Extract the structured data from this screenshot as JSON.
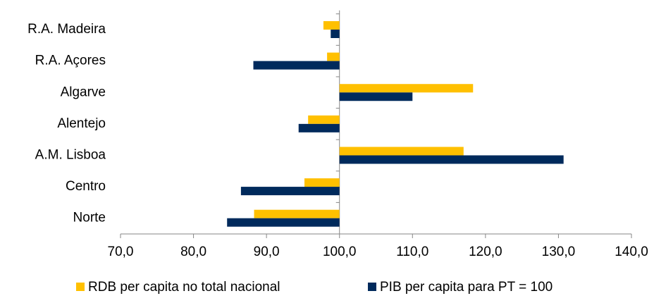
{
  "chart_data": {
    "type": "hbar",
    "categories": [
      "R.A. Madeira",
      "R.A. Açores",
      "Algarve",
      "Alentejo",
      "A.M. Lisboa",
      "Centro",
      "Norte"
    ],
    "series": [
      {
        "name": "RDB per capita no total nacional",
        "color": "#FFC000",
        "values": [
          97.8,
          98.3,
          118.3,
          95.7,
          117.0,
          95.2,
          88.3
        ]
      },
      {
        "name": "PIB per capita para PT = 100",
        "color": "#002A5C",
        "values": [
          98.8,
          88.2,
          110.0,
          94.4,
          130.7,
          86.5,
          84.6
        ]
      }
    ],
    "origin": 100,
    "xlim": [
      70,
      140
    ],
    "xticks": [
      {
        "value": 70,
        "label": "70,0"
      },
      {
        "value": 80,
        "label": "80,0"
      },
      {
        "value": 90,
        "label": "90,0"
      },
      {
        "value": 100,
        "label": "100,0"
      },
      {
        "value": 110,
        "label": "110,0"
      },
      {
        "value": 120,
        "label": "120,0"
      },
      {
        "value": 130,
        "label": "130,0"
      },
      {
        "value": 140,
        "label": "140,0"
      }
    ],
    "legend": "bottom"
  }
}
